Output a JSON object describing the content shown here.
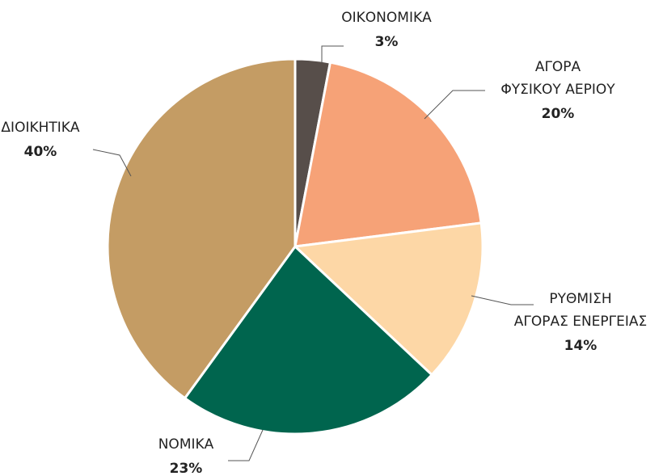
{
  "chart_data": {
    "type": "pie",
    "categories": [
      "ΟΙΚΟΝΟΜΙΚΑ",
      "ΑΓΟΡΑ\nΦΥΣΙΚΟΥ ΑΕΡΙΟΥ",
      "ΡΥΘΜΙΣΗ\nΑΓΟΡΑΣ ΕΝΕΡΓΕΙΑΣ",
      "ΝΟΜΙΚΑ",
      "ΔΙΟΙΚΗΤΙΚΑ"
    ],
    "values": [
      3,
      20,
      14,
      23,
      40
    ],
    "value_labels": [
      "3%",
      "20%",
      "14%",
      "23%",
      "40%"
    ],
    "colors": [
      "#574e4a",
      "#f6a277",
      "#fdd7a6",
      "#00654e",
      "#c49c64"
    ]
  }
}
